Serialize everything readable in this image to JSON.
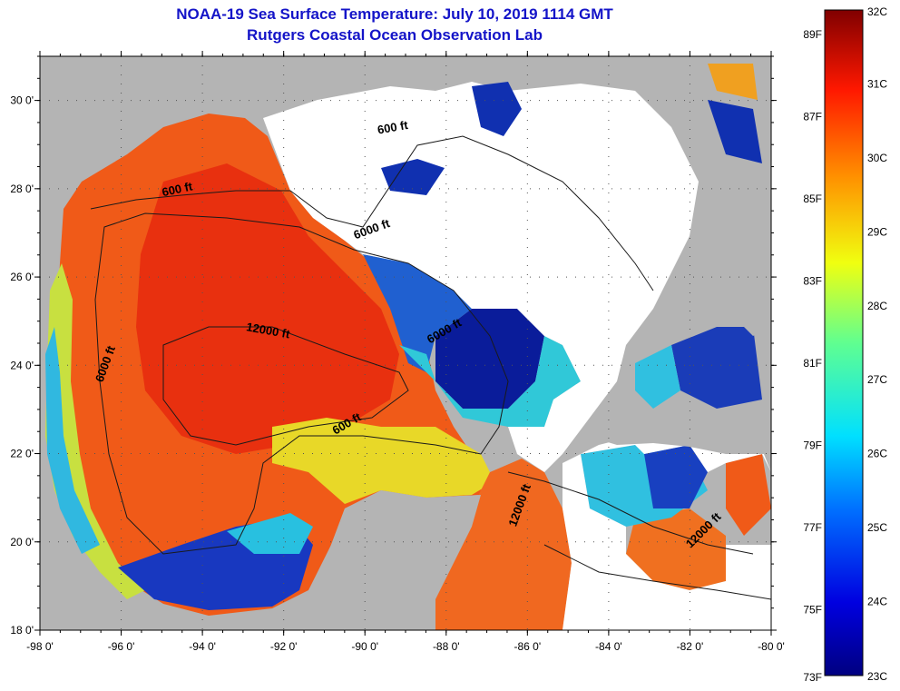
{
  "title": {
    "line1": "NOAA-19 Sea Surface Temperature:  July 10, 2019 1114 GMT",
    "line2": "Rutgers Coastal Ocean Observation Lab"
  },
  "map": {
    "lat_ticks": [
      {
        "value": 30,
        "label": "30 0'"
      },
      {
        "value": 28,
        "label": "28 0'"
      },
      {
        "value": 26,
        "label": "26 0'"
      },
      {
        "value": 24,
        "label": "24 0'"
      },
      {
        "value": 22,
        "label": "22 0'"
      },
      {
        "value": 20,
        "label": "20 0'"
      },
      {
        "value": 18,
        "label": "18 0'"
      }
    ],
    "lon_ticks": [
      {
        "value": -98,
        "label": "-98 0'"
      },
      {
        "value": -96,
        "label": "-96 0'"
      },
      {
        "value": -94,
        "label": "-94 0'"
      },
      {
        "value": -92,
        "label": "-92 0'"
      },
      {
        "value": -90,
        "label": "-90 0'"
      },
      {
        "value": -88,
        "label": "-88 0'"
      },
      {
        "value": -86,
        "label": "-86 0'"
      },
      {
        "value": -84,
        "label": "-84 0'"
      },
      {
        "value": -82,
        "label": "-82 0'"
      },
      {
        "value": -80,
        "label": "-80 0'"
      }
    ],
    "lat_range": [
      18,
      31
    ],
    "lon_range": [
      -98,
      -80
    ],
    "contour_labels": [
      {
        "text": "600 ft",
        "lon": -89.3,
        "lat": 29.3,
        "rotate": -10
      },
      {
        "text": "600 ft",
        "lon": -94.6,
        "lat": 27.9,
        "rotate": -12
      },
      {
        "text": "6000 ft",
        "lon": -89.8,
        "lat": 27.0,
        "rotate": -20
      },
      {
        "text": "12000 ft",
        "lon": -92.4,
        "lat": 24.7,
        "rotate": 10
      },
      {
        "text": "6000 ft",
        "lon": -88.0,
        "lat": 24.7,
        "rotate": -30
      },
      {
        "text": "6000 ft",
        "lon": -96.3,
        "lat": 24.0,
        "rotate": -70
      },
      {
        "text": "600 ft",
        "lon": -90.4,
        "lat": 22.6,
        "rotate": -30
      },
      {
        "text": "12000 ft",
        "lon": -86.1,
        "lat": 20.8,
        "rotate": -70
      },
      {
        "text": "12000 ft",
        "lon": -81.6,
        "lat": 20.2,
        "rotate": -45
      }
    ],
    "colors": {
      "land": "#b4b4b4",
      "cloud": "#ffffff",
      "warm": "#f05014",
      "hot": "#e83010",
      "yellow": "#f0e020",
      "cyan": "#20c8e8",
      "cold": "#0818a0"
    }
  },
  "colorbar": {
    "fahrenheit": [
      {
        "value": 89,
        "label": "89F"
      },
      {
        "value": 87,
        "label": "87F"
      },
      {
        "value": 85,
        "label": "85F"
      },
      {
        "value": 83,
        "label": "83F"
      },
      {
        "value": 81,
        "label": "81F"
      },
      {
        "value": 79,
        "label": "79F"
      },
      {
        "value": 77,
        "label": "77F"
      },
      {
        "value": 75,
        "label": "75F"
      },
      {
        "value": 73,
        "label": "73F"
      }
    ],
    "celsius": [
      {
        "value": 32,
        "label": "32C"
      },
      {
        "value": 31,
        "label": "31C"
      },
      {
        "value": 30,
        "label": "30C"
      },
      {
        "value": 29,
        "label": "29C"
      },
      {
        "value": 28,
        "label": "28C"
      },
      {
        "value": 27,
        "label": "27C"
      },
      {
        "value": 26,
        "label": "26C"
      },
      {
        "value": 25,
        "label": "25C"
      },
      {
        "value": 24,
        "label": "24C"
      },
      {
        "value": 23,
        "label": "23C"
      }
    ],
    "range_c": [
      23,
      32
    ]
  }
}
